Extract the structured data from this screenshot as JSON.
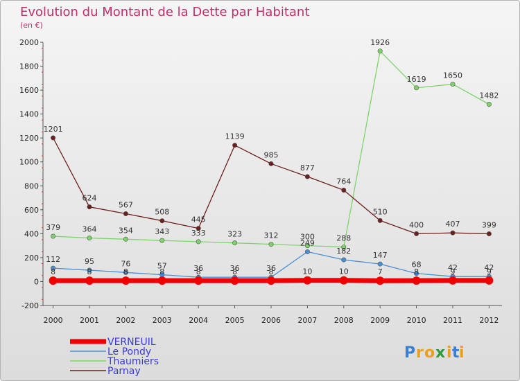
{
  "chart_data": {
    "type": "line",
    "title": "Evolution du Montant de la Dette par Habitant",
    "subtitle": "(en €)",
    "categories": [
      "2000",
      "2001",
      "2002",
      "2003",
      "2004",
      "2005",
      "2006",
      "2007",
      "2008",
      "2009",
      "2010",
      "2011",
      "2012"
    ],
    "ylim": [
      -200,
      2000
    ],
    "yticks": [
      -200,
      0,
      200,
      400,
      600,
      800,
      1000,
      1200,
      1400,
      1600,
      1800,
      2000
    ],
    "grid": false,
    "legend_position": "bottom-left",
    "series": [
      {
        "name": "VERNEUIL",
        "color": "#ee0000",
        "values": [
          8,
          8,
          8,
          8,
          8,
          8,
          8,
          10,
          10,
          7,
          8,
          9,
          9
        ],
        "labels": [
          "8",
          "8",
          "8",
          "8",
          "8",
          "8",
          "8",
          "10",
          "10",
          "7",
          "8",
          "9",
          "9"
        ]
      },
      {
        "name": "Le Pondy",
        "color": "#4a8fd4",
        "values": [
          112,
          95,
          76,
          57,
          36,
          36,
          36,
          249,
          182,
          147,
          68,
          42,
          42
        ],
        "labels": [
          "112",
          "95",
          "76",
          "57",
          "36",
          "36",
          "36",
          "249",
          "182",
          "147",
          "68",
          "42",
          "42"
        ]
      },
      {
        "name": "Thaumiers",
        "color": "#7ed36a",
        "values": [
          379,
          364,
          354,
          343,
          333,
          323,
          312,
          300,
          288,
          1926,
          1619,
          1650,
          1482
        ],
        "labels": [
          "379",
          "364",
          "354",
          "343",
          "333",
          "323",
          "312",
          "300",
          "288",
          "1926",
          "1619",
          "1650",
          "1482"
        ]
      },
      {
        "name": "Parnay",
        "color": "#6b1f1f",
        "values": [
          1201,
          624,
          567,
          508,
          445,
          1139,
          985,
          877,
          764,
          510,
          400,
          407,
          399
        ],
        "labels": [
          "1201",
          "624",
          "567",
          "508",
          "445",
          "1139",
          "985",
          "877",
          "764",
          "510",
          "400",
          "407",
          "399"
        ]
      }
    ]
  },
  "logo": {
    "letters": [
      "P",
      "r",
      "o",
      "x",
      "i",
      "t",
      "i"
    ],
    "colors": [
      "#3b7fd1",
      "#e8a020",
      "#e8a020",
      "#2e9a3c",
      "#e8a020",
      "#3b7fd1",
      "#e8a020"
    ]
  }
}
